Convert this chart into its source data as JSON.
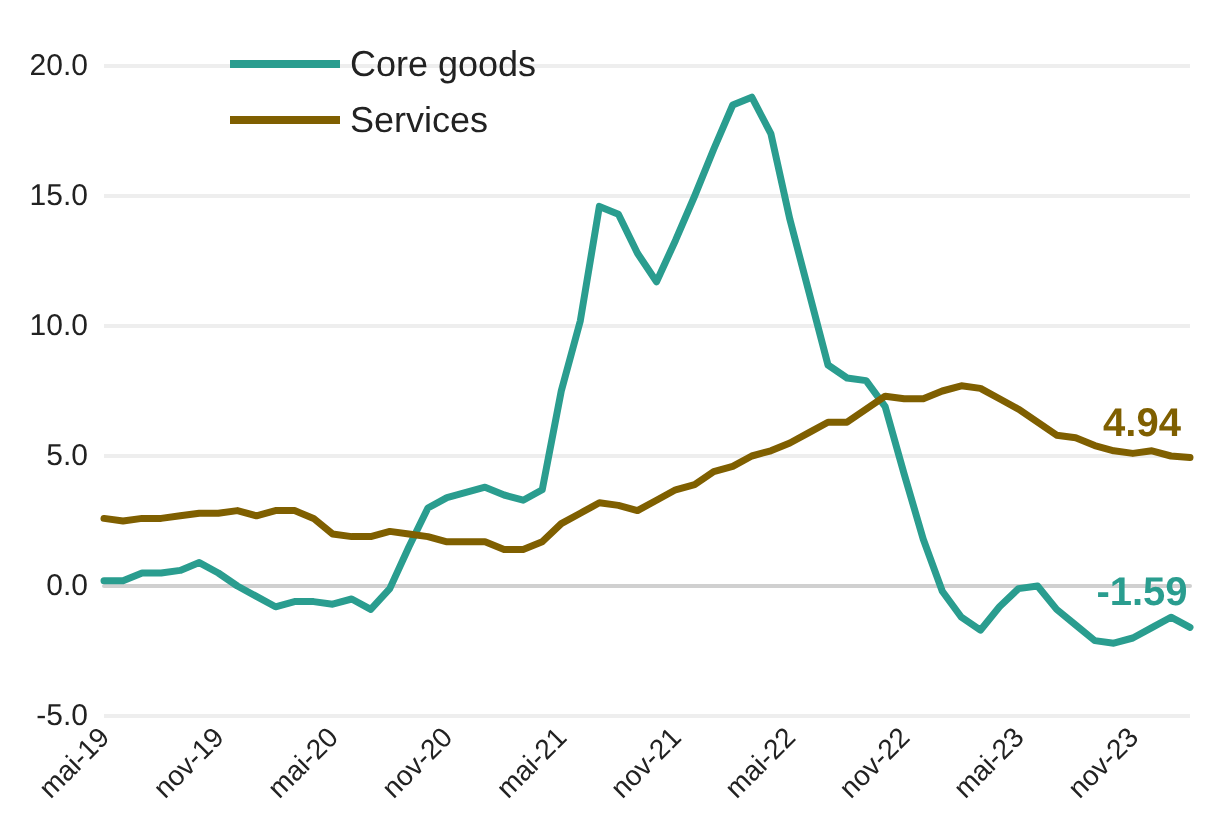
{
  "chart_data": {
    "type": "line",
    "categories": [
      "mai-19",
      null,
      null,
      null,
      null,
      null,
      "nov-19",
      null,
      null,
      null,
      null,
      null,
      "mai-20",
      null,
      null,
      null,
      null,
      null,
      "nov-20",
      null,
      null,
      null,
      null,
      null,
      "mai-21",
      null,
      null,
      null,
      null,
      null,
      "nov-21",
      null,
      null,
      null,
      null,
      null,
      "mai-22",
      null,
      null,
      null,
      null,
      null,
      "nov-22",
      null,
      null,
      null,
      null,
      null,
      "mai-23",
      null,
      null,
      null,
      null,
      null,
      "nov-23",
      null,
      null,
      null
    ],
    "series": [
      {
        "name": "Core goods",
        "color": "#2a9d8f",
        "values": [
          0.2,
          0.2,
          0.5,
          0.5,
          0.6,
          0.9,
          0.5,
          0.0,
          -0.4,
          -0.8,
          -0.6,
          -0.6,
          -0.7,
          -0.5,
          -0.9,
          -0.1,
          1.5,
          3.0,
          3.4,
          3.6,
          3.8,
          3.5,
          3.3,
          3.7,
          7.5,
          10.2,
          14.6,
          14.3,
          12.8,
          11.7,
          13.3,
          15.0,
          16.8,
          18.5,
          18.8,
          17.4,
          14.1,
          11.3,
          8.5,
          8.0,
          7.9,
          6.9,
          4.3,
          1.8,
          -0.2,
          -1.2,
          -1.7,
          -0.8,
          -0.1,
          0.0,
          -0.9,
          -1.5,
          -2.1,
          -2.2,
          -2.0,
          -1.6,
          -1.2,
          -1.59
        ],
        "value_labels": [
          null,
          null,
          null,
          null,
          null,
          null,
          null,
          null,
          null,
          null,
          null,
          null,
          null,
          null,
          null,
          null,
          null,
          null,
          null,
          null,
          null,
          null,
          null,
          null,
          null,
          null,
          null,
          null,
          null,
          null,
          null,
          null,
          null,
          null,
          null,
          null,
          null,
          null,
          null,
          null,
          null,
          null,
          null,
          null,
          null,
          null,
          null,
          null,
          null,
          null,
          null,
          null,
          null,
          null,
          null,
          null,
          null,
          "-1.59"
        ]
      },
      {
        "name": "Services",
        "color": "#7f5f00",
        "values": [
          2.6,
          2.5,
          2.6,
          2.6,
          2.7,
          2.8,
          2.8,
          2.9,
          2.7,
          2.9,
          2.9,
          2.6,
          2.0,
          1.9,
          1.9,
          2.1,
          2.0,
          1.9,
          1.7,
          1.7,
          1.7,
          1.4,
          1.4,
          1.7,
          2.4,
          2.8,
          3.2,
          3.1,
          2.9,
          3.3,
          3.7,
          3.9,
          4.4,
          4.6,
          5.0,
          5.2,
          5.5,
          5.9,
          6.3,
          6.3,
          6.8,
          7.3,
          7.2,
          7.2,
          7.5,
          7.7,
          7.6,
          7.2,
          6.8,
          6.3,
          5.8,
          5.7,
          5.4,
          5.2,
          5.1,
          5.2,
          5.0,
          4.94
        ],
        "value_labels": [
          null,
          null,
          null,
          null,
          null,
          null,
          null,
          null,
          null,
          null,
          null,
          null,
          null,
          null,
          null,
          null,
          null,
          null,
          null,
          null,
          null,
          null,
          null,
          null,
          null,
          null,
          null,
          null,
          null,
          null,
          null,
          null,
          null,
          null,
          null,
          null,
          null,
          null,
          null,
          null,
          null,
          null,
          null,
          null,
          null,
          null,
          null,
          null,
          null,
          null,
          null,
          null,
          null,
          null,
          null,
          null,
          null,
          "4.94"
        ]
      }
    ],
    "ylim": [
      -5,
      20
    ],
    "yticks": [
      {
        "value": -5,
        "label": "-5.0"
      },
      {
        "value": 0,
        "label": "0.0"
      },
      {
        "value": 5,
        "label": "5.0"
      },
      {
        "value": 10,
        "label": "10.0"
      },
      {
        "value": 15,
        "label": "15.0"
      },
      {
        "value": 20,
        "label": "20.0"
      }
    ],
    "grid": "y",
    "legend": "top left",
    "marker": "none",
    "line_style": "solid"
  }
}
